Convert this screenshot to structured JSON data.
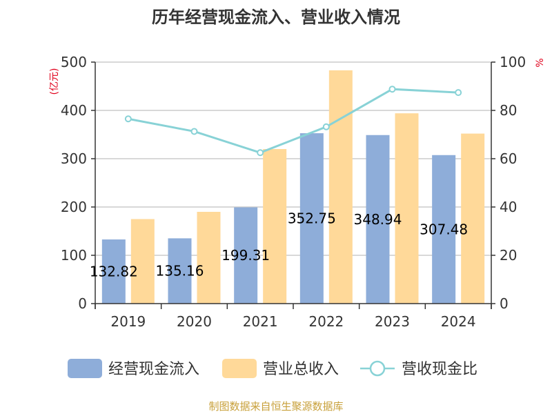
{
  "chart_data": {
    "type": "bar",
    "title": "历年经营现金流入、营业收入情况",
    "categories": [
      "2019",
      "2020",
      "2021",
      "2022",
      "2023",
      "2024"
    ],
    "left_axis": {
      "unit": "(亿元)",
      "ylim": [
        0,
        500
      ],
      "ticks": [
        "0",
        "100",
        "200",
        "300",
        "400",
        "500"
      ]
    },
    "right_axis": {
      "unit": "%",
      "ylim": [
        0,
        100
      ],
      "ticks": [
        "0",
        "20",
        "40",
        "60",
        "80",
        "100"
      ]
    },
    "series": [
      {
        "name": "经营现金流入",
        "type": "bar",
        "axis": "left",
        "color": "#8eadd9",
        "values": [
          132.82,
          135.16,
          199.31,
          352.75,
          348.94,
          307.48
        ],
        "labels": [
          "132.82",
          "135.16",
          "199.31",
          "352.75",
          "348.94",
          "307.48"
        ]
      },
      {
        "name": "营业总收入",
        "type": "bar",
        "axis": "left",
        "color": "#ffd999",
        "values": [
          175,
          190,
          320,
          483,
          394,
          352
        ]
      },
      {
        "name": "营收现金比",
        "type": "line",
        "axis": "right",
        "color": "#88d2d6",
        "values": [
          76.5,
          71.3,
          62.5,
          73.2,
          88.8,
          87.4
        ]
      }
    ],
    "grid": true,
    "legend_position": "bottom"
  },
  "source_text": "制图数据来自恒生聚源数据库"
}
